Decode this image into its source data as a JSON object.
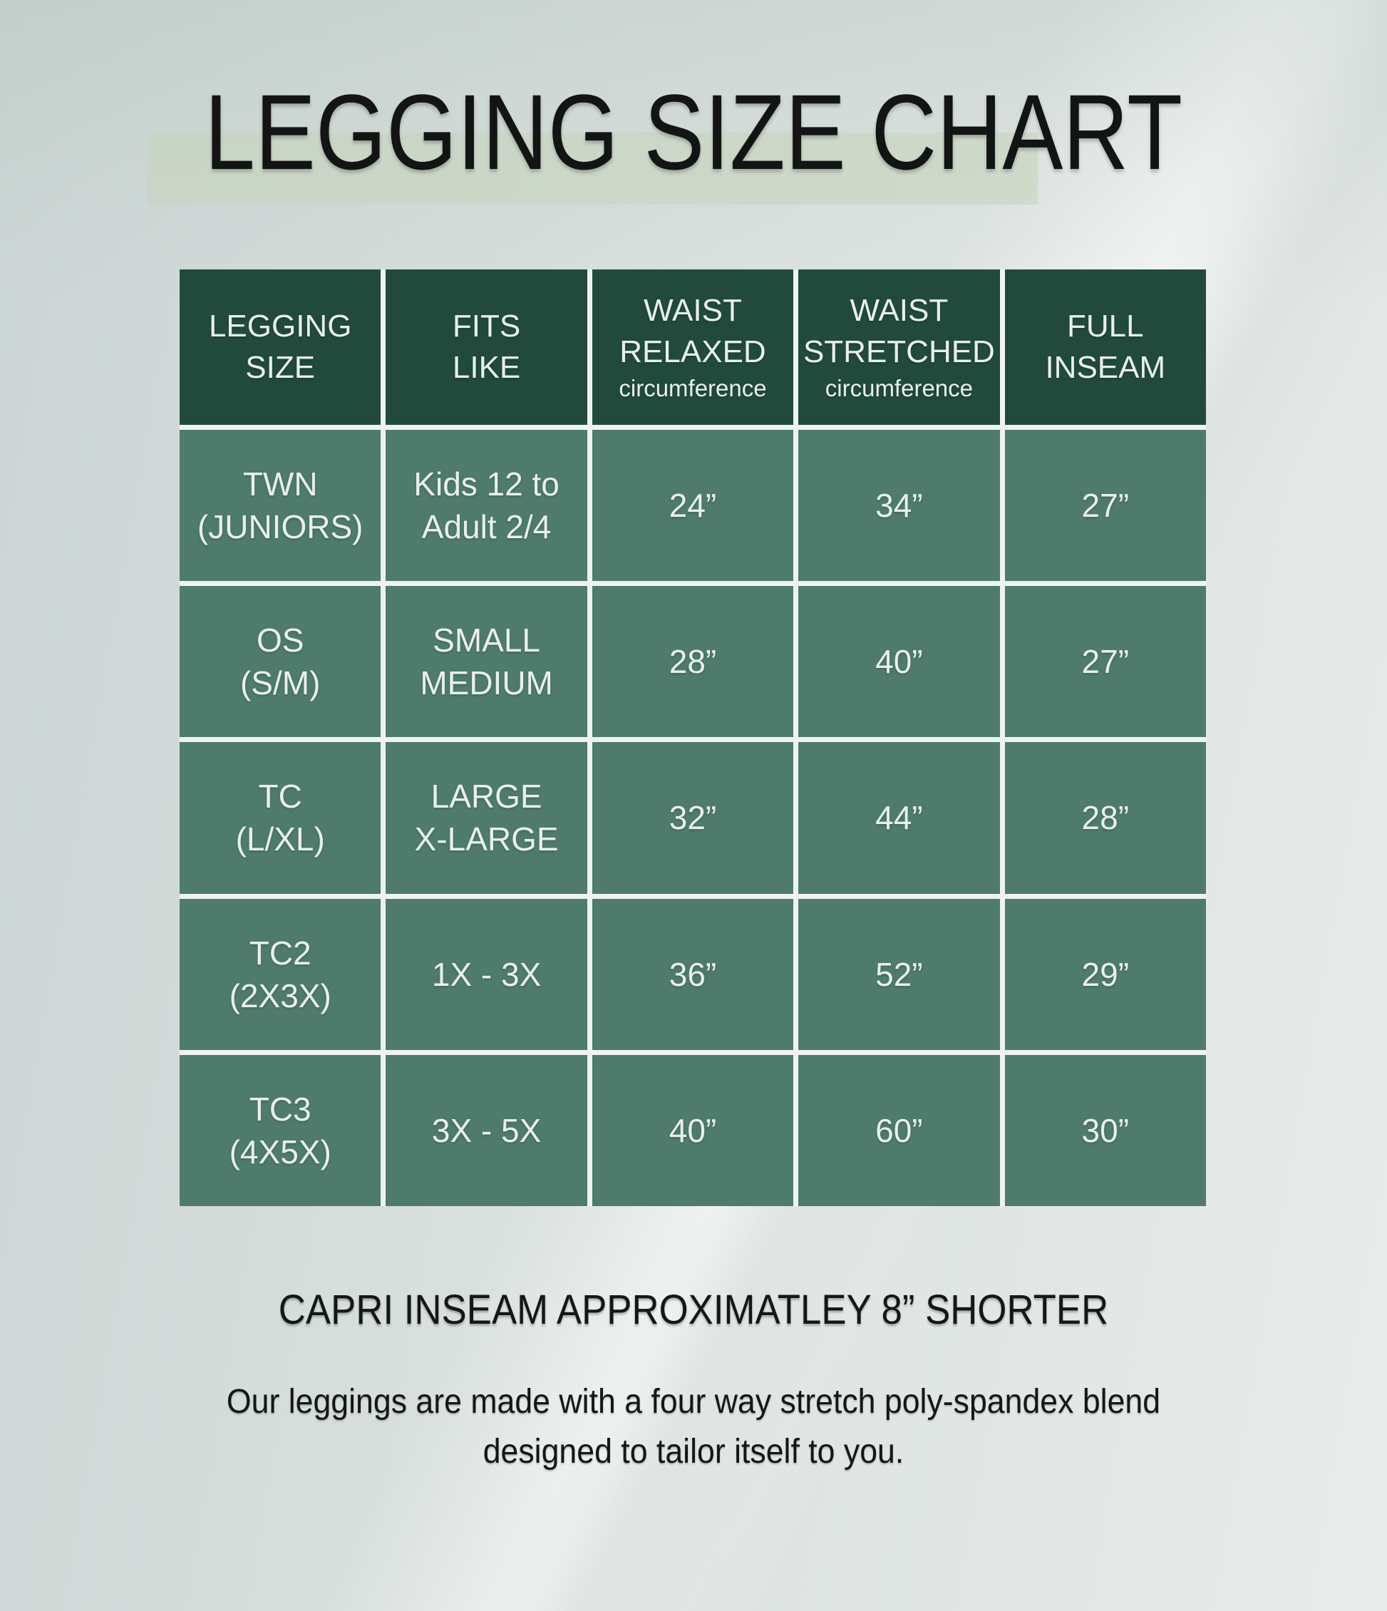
{
  "page": {
    "title": "LEGGING SIZE CHART",
    "caption": "CAPRI INSEAM APPROXIMATLEY 8” SHORTER",
    "note_line1": "Our leggings are made with a four way stretch poly-spandex blend",
    "note_line2": "designed to tailor itself to you."
  },
  "colors": {
    "header_bg": "#214a3d",
    "row_bg": "#4e7b6c",
    "grid_line": "#eef3f1",
    "cell_text": "#e9efec",
    "dark_text": "#141716",
    "title_highlight_band": "#c7d3bd",
    "page_bg_left": "#cbd5d4",
    "page_bg_right": "#e8eceb"
  },
  "chart_data": {
    "type": "table",
    "title": "LEGGING SIZE CHART",
    "headers": [
      {
        "line1": "LEGGING",
        "line2": "SIZE",
        "sub": ""
      },
      {
        "line1": "FITS",
        "line2": "LIKE",
        "sub": ""
      },
      {
        "line1": "WAIST",
        "line2": "RELAXED",
        "sub": "circumference"
      },
      {
        "line1": "WAIST",
        "line2": "STRETCHED",
        "sub": "circumference"
      },
      {
        "line1": "FULL",
        "line2": "INSEAM",
        "sub": ""
      }
    ],
    "rows": [
      {
        "size_line1": "TWN",
        "size_line2": "(JUNIORS)",
        "fits_line1": "Kids 12 to",
        "fits_line2": "Adult 2/4",
        "waist_relaxed": "24”",
        "waist_stretched": "34”",
        "full_inseam": "27”"
      },
      {
        "size_line1": "OS",
        "size_line2": "(S/M)",
        "fits_line1": "SMALL",
        "fits_line2": "MEDIUM",
        "waist_relaxed": "28”",
        "waist_stretched": "40”",
        "full_inseam": "27”"
      },
      {
        "size_line1": "TC",
        "size_line2": "(L/XL)",
        "fits_line1": "LARGE",
        "fits_line2": "X-LARGE",
        "waist_relaxed": "32”",
        "waist_stretched": "44”",
        "full_inseam": "28”"
      },
      {
        "size_line1": "TC2",
        "size_line2": "(2X3X)",
        "fits_line1": "1X - 3X",
        "fits_line2": "",
        "waist_relaxed": "36”",
        "waist_stretched": "52”",
        "full_inseam": "29”"
      },
      {
        "size_line1": "TC3",
        "size_line2": "(4X5X)",
        "fits_line1": "3X - 5X",
        "fits_line2": "",
        "waist_relaxed": "40”",
        "waist_stretched": "60”",
        "full_inseam": "30”"
      }
    ]
  }
}
